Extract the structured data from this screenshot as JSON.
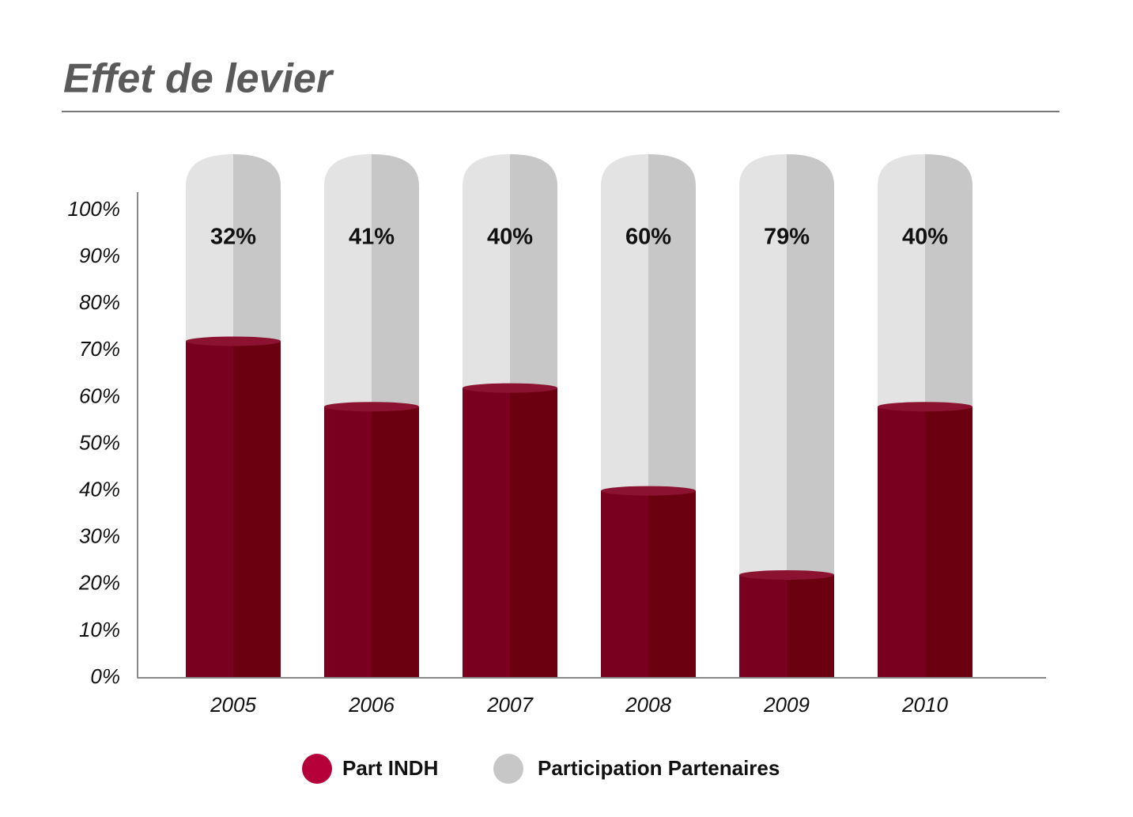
{
  "chart_data": {
    "type": "bar",
    "stacked": true,
    "title": "Effet de levier",
    "categories": [
      "2005",
      "2006",
      "2007",
      "2008",
      "2009",
      "2010"
    ],
    "series": [
      {
        "name": "Part INDH",
        "color": "#7a0020",
        "values": [
          72,
          58,
          62,
          40,
          22,
          58
        ]
      },
      {
        "name": "Participation Partenaires",
        "color": "#c8c7c8",
        "values": [
          32,
          41,
          40,
          60,
          79,
          40
        ],
        "value_labels": [
          "32%",
          "41%",
          "40%",
          "60%",
          "79%",
          "40%"
        ]
      }
    ],
    "ylim": [
      0,
      100
    ],
    "yticks": [
      {
        "value": 0,
        "label": "0%"
      },
      {
        "value": 10,
        "label": "10%"
      },
      {
        "value": 20,
        "label": "20%"
      },
      {
        "value": 30,
        "label": "30%"
      },
      {
        "value": 40,
        "label": "40%"
      },
      {
        "value": 50,
        "label": "50%"
      },
      {
        "value": 60,
        "label": "60%"
      },
      {
        "value": 70,
        "label": "70%"
      },
      {
        "value": 80,
        "label": "80%"
      },
      {
        "value": 90,
        "label": "90%"
      },
      {
        "value": 100,
        "label": "100%"
      }
    ]
  }
}
